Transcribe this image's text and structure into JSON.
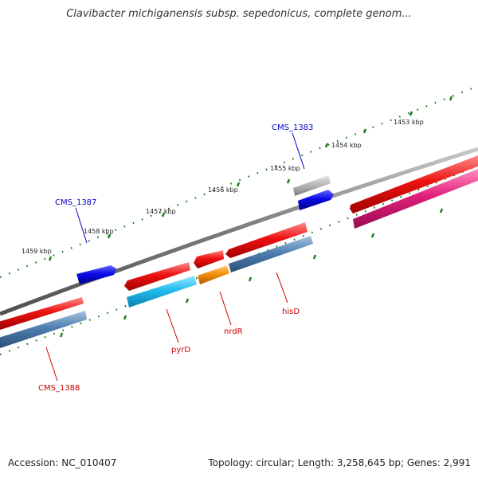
{
  "title": "Clavibacter michiganensis subsp. sepedonicus, complete genom...",
  "footer": {
    "accession": "Accession: NC_010407",
    "summary": "Topology: circular; Length: 3,258,645 bp; Genes: 2,991"
  },
  "colors": {
    "backbone": "#7a7a7a",
    "ticks": "#1a7a1a",
    "forward_label": "#0000cc",
    "reverse_label": "#cc0000",
    "red": "#ee1111",
    "blue": "#0a0ae6",
    "gray": "#b8b8b8",
    "cyan": "#22bbee",
    "steel": "#4f7fb0",
    "orange": "#f5900a",
    "magenta": "#e0207a"
  },
  "scale": {
    "unit": "kbp",
    "labels": [
      "1453 kbp",
      "1454 kbp",
      "1455 kbp",
      "1456 kbp",
      "1457 kbp",
      "1458 kbp",
      "1459 kbp"
    ]
  },
  "gene_labels": [
    {
      "name": "CMS_1383",
      "strand": "forward"
    },
    {
      "name": "CMS_1387",
      "strand": "forward"
    },
    {
      "name": "CMS_1388",
      "strand": "reverse"
    },
    {
      "name": "pyrD",
      "strand": "reverse"
    },
    {
      "name": "nrdR",
      "strand": "reverse"
    },
    {
      "name": "hisD",
      "strand": "reverse"
    }
  ]
}
